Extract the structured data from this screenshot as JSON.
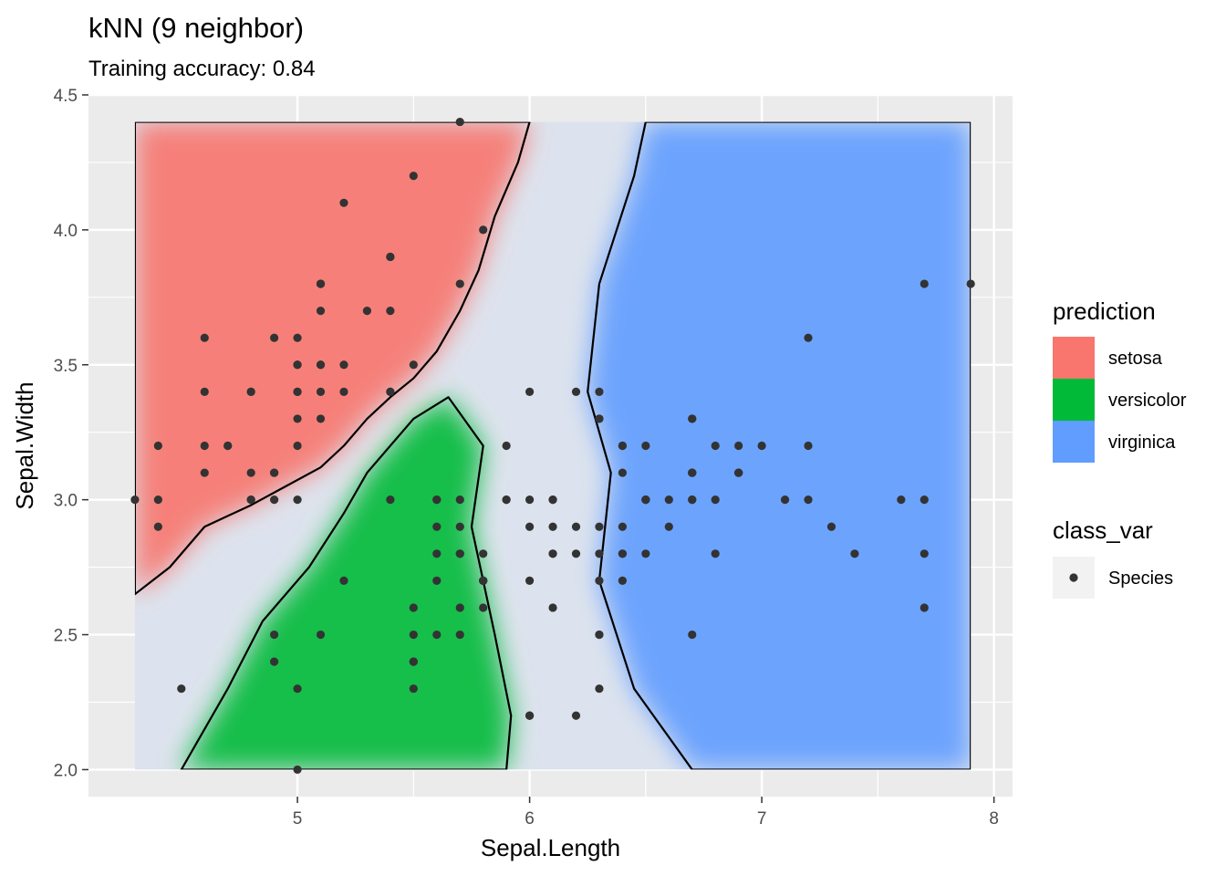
{
  "chart_data": {
    "type": "scatter",
    "title": "kNN (9 neighbor)",
    "subtitle": "Training accuracy: 0.84",
    "xlabel": "Sepal.Length",
    "ylabel": "Sepal.Width",
    "xlim": [
      4.1,
      8.08
    ],
    "ylim": [
      1.9,
      4.5
    ],
    "x_ticks": [
      {
        "value": 5,
        "label": "5"
      },
      {
        "value": 6,
        "label": "6"
      },
      {
        "value": 7,
        "label": "7"
      },
      {
        "value": 8,
        "label": "8"
      }
    ],
    "y_ticks": [
      {
        "value": 2.0,
        "label": "2.0"
      },
      {
        "value": 2.5,
        "label": "2.5"
      },
      {
        "value": 3.0,
        "label": "3.0"
      },
      {
        "value": 3.5,
        "label": "3.5"
      },
      {
        "value": 4.0,
        "label": "4.0"
      },
      {
        "value": 4.5,
        "label": "4.5"
      }
    ],
    "grid": true,
    "panel_background": "#ebebeb",
    "region_extent": {
      "x": [
        4.3,
        7.9
      ],
      "y": [
        2.0,
        4.4
      ]
    },
    "prediction_regions": [
      {
        "class": "setosa",
        "color": "#F8766D",
        "polygon": [
          [
            4.3,
            4.4
          ],
          [
            6.0,
            4.4
          ],
          [
            5.95,
            4.25
          ],
          [
            5.85,
            4.05
          ],
          [
            5.78,
            3.85
          ],
          [
            5.7,
            3.7
          ],
          [
            5.6,
            3.55
          ],
          [
            5.5,
            3.45
          ],
          [
            5.4,
            3.38
          ],
          [
            5.3,
            3.3
          ],
          [
            5.2,
            3.2
          ],
          [
            5.1,
            3.12
          ],
          [
            4.95,
            3.05
          ],
          [
            4.8,
            2.98
          ],
          [
            4.6,
            2.9
          ],
          [
            4.45,
            2.75
          ],
          [
            4.3,
            2.65
          ]
        ]
      },
      {
        "class": "versicolor",
        "color": "#00BA38",
        "polygon": [
          [
            4.5,
            2.0
          ],
          [
            5.9,
            2.0
          ],
          [
            5.92,
            2.2
          ],
          [
            5.85,
            2.5
          ],
          [
            5.75,
            2.9
          ],
          [
            5.8,
            3.2
          ],
          [
            5.65,
            3.38
          ],
          [
            5.5,
            3.3
          ],
          [
            5.3,
            3.1
          ],
          [
            5.2,
            2.95
          ],
          [
            5.05,
            2.75
          ],
          [
            4.85,
            2.55
          ],
          [
            4.7,
            2.3
          ]
        ]
      },
      {
        "class": "virginica",
        "color": "#619CFF",
        "polygon": [
          [
            6.5,
            4.4
          ],
          [
            7.9,
            4.4
          ],
          [
            7.9,
            2.0
          ],
          [
            6.7,
            2.0
          ],
          [
            6.45,
            2.3
          ],
          [
            6.3,
            2.7
          ],
          [
            6.35,
            3.1
          ],
          [
            6.25,
            3.4
          ],
          [
            6.3,
            3.8
          ],
          [
            6.45,
            4.2
          ]
        ]
      }
    ],
    "legend": {
      "placement": "right",
      "groups": [
        {
          "title": "prediction",
          "entries": [
            {
              "label": "setosa",
              "color": "#F8766D"
            },
            {
              "label": "versicolor",
              "color": "#00BA38"
            },
            {
              "label": "virginica",
              "color": "#619CFF"
            }
          ]
        },
        {
          "title": "class_var",
          "entries": [
            {
              "label": "Species",
              "color": "#333333"
            }
          ]
        }
      ]
    },
    "series": [
      {
        "name": "Species",
        "color": "#333333",
        "points": [
          [
            5.1,
            3.5
          ],
          [
            4.9,
            3.0
          ],
          [
            4.7,
            3.2
          ],
          [
            4.6,
            3.1
          ],
          [
            5.0,
            3.6
          ],
          [
            5.4,
            3.9
          ],
          [
            4.6,
            3.4
          ],
          [
            5.0,
            3.4
          ],
          [
            4.4,
            2.9
          ],
          [
            4.9,
            3.1
          ],
          [
            5.4,
            3.7
          ],
          [
            4.8,
            3.4
          ],
          [
            4.8,
            3.0
          ],
          [
            4.3,
            3.0
          ],
          [
            5.8,
            4.0
          ],
          [
            5.7,
            4.4
          ],
          [
            5.4,
            3.9
          ],
          [
            5.1,
            3.5
          ],
          [
            5.7,
            3.8
          ],
          [
            5.1,
            3.8
          ],
          [
            5.4,
            3.4
          ],
          [
            5.1,
            3.7
          ],
          [
            4.6,
            3.6
          ],
          [
            5.1,
            3.3
          ],
          [
            4.8,
            3.4
          ],
          [
            5.0,
            3.0
          ],
          [
            5.0,
            3.4
          ],
          [
            5.2,
            3.5
          ],
          [
            5.2,
            3.4
          ],
          [
            4.7,
            3.2
          ],
          [
            4.8,
            3.1
          ],
          [
            5.4,
            3.4
          ],
          [
            5.2,
            4.1
          ],
          [
            5.5,
            4.2
          ],
          [
            4.9,
            3.1
          ],
          [
            5.0,
            3.2
          ],
          [
            5.5,
            3.5
          ],
          [
            4.9,
            3.6
          ],
          [
            4.4,
            3.0
          ],
          [
            5.1,
            3.4
          ],
          [
            5.0,
            3.5
          ],
          [
            4.5,
            2.3
          ],
          [
            4.4,
            3.2
          ],
          [
            5.0,
            3.5
          ],
          [
            5.1,
            3.8
          ],
          [
            4.8,
            3.0
          ],
          [
            5.1,
            3.8
          ],
          [
            4.6,
            3.2
          ],
          [
            5.3,
            3.7
          ],
          [
            5.0,
            3.3
          ],
          [
            7.0,
            3.2
          ],
          [
            6.4,
            3.2
          ],
          [
            6.9,
            3.1
          ],
          [
            5.5,
            2.3
          ],
          [
            6.5,
            2.8
          ],
          [
            5.7,
            2.8
          ],
          [
            6.3,
            3.3
          ],
          [
            4.9,
            2.4
          ],
          [
            6.6,
            2.9
          ],
          [
            5.2,
            2.7
          ],
          [
            5.0,
            2.0
          ],
          [
            5.9,
            3.0
          ],
          [
            6.0,
            2.2
          ],
          [
            6.1,
            2.9
          ],
          [
            5.6,
            2.9
          ],
          [
            6.7,
            3.1
          ],
          [
            5.6,
            3.0
          ],
          [
            5.8,
            2.7
          ],
          [
            6.2,
            2.2
          ],
          [
            5.6,
            2.5
          ],
          [
            5.9,
            3.2
          ],
          [
            6.1,
            2.8
          ],
          [
            6.3,
            2.5
          ],
          [
            6.1,
            2.8
          ],
          [
            6.4,
            2.9
          ],
          [
            6.6,
            3.0
          ],
          [
            6.8,
            2.8
          ],
          [
            6.7,
            3.0
          ],
          [
            6.0,
            2.9
          ],
          [
            5.7,
            2.6
          ],
          [
            5.5,
            2.4
          ],
          [
            5.5,
            2.4
          ],
          [
            5.8,
            2.7
          ],
          [
            6.0,
            2.7
          ],
          [
            5.4,
            3.0
          ],
          [
            6.0,
            3.4
          ],
          [
            6.7,
            3.1
          ],
          [
            6.3,
            2.3
          ],
          [
            5.6,
            3.0
          ],
          [
            5.5,
            2.5
          ],
          [
            5.5,
            2.6
          ],
          [
            6.1,
            3.0
          ],
          [
            5.8,
            2.6
          ],
          [
            5.0,
            2.3
          ],
          [
            5.6,
            2.7
          ],
          [
            5.7,
            3.0
          ],
          [
            5.7,
            2.9
          ],
          [
            6.2,
            2.9
          ],
          [
            5.1,
            2.5
          ],
          [
            5.7,
            2.8
          ],
          [
            6.3,
            3.3
          ],
          [
            5.8,
            2.7
          ],
          [
            7.1,
            3.0
          ],
          [
            6.3,
            2.9
          ],
          [
            6.5,
            3.0
          ],
          [
            7.6,
            3.0
          ],
          [
            4.9,
            2.5
          ],
          [
            7.3,
            2.9
          ],
          [
            6.7,
            2.5
          ],
          [
            7.2,
            3.6
          ],
          [
            6.5,
            3.2
          ],
          [
            6.4,
            2.7
          ],
          [
            6.8,
            3.0
          ],
          [
            5.7,
            2.5
          ],
          [
            5.8,
            2.8
          ],
          [
            6.4,
            3.2
          ],
          [
            6.5,
            3.0
          ],
          [
            7.7,
            3.8
          ],
          [
            7.7,
            2.6
          ],
          [
            6.0,
            2.2
          ],
          [
            6.9,
            3.2
          ],
          [
            5.6,
            2.8
          ],
          [
            7.7,
            2.8
          ],
          [
            6.3,
            2.7
          ],
          [
            6.7,
            3.3
          ],
          [
            7.2,
            3.2
          ],
          [
            6.2,
            2.8
          ],
          [
            6.1,
            3.0
          ],
          [
            6.4,
            2.8
          ],
          [
            7.2,
            3.0
          ],
          [
            7.4,
            2.8
          ],
          [
            7.9,
            3.8
          ],
          [
            6.4,
            2.8
          ],
          [
            6.3,
            2.8
          ],
          [
            6.1,
            2.6
          ],
          [
            7.7,
            3.0
          ],
          [
            6.3,
            3.4
          ],
          [
            6.4,
            3.1
          ],
          [
            6.0,
            3.0
          ],
          [
            6.9,
            3.1
          ],
          [
            6.7,
            3.1
          ],
          [
            6.9,
            3.1
          ],
          [
            5.8,
            2.7
          ],
          [
            6.8,
            3.2
          ],
          [
            6.7,
            3.3
          ],
          [
            6.7,
            3.0
          ],
          [
            6.3,
            2.5
          ],
          [
            6.5,
            3.0
          ],
          [
            6.2,
            3.4
          ],
          [
            5.9,
            3.0
          ]
        ]
      }
    ]
  }
}
